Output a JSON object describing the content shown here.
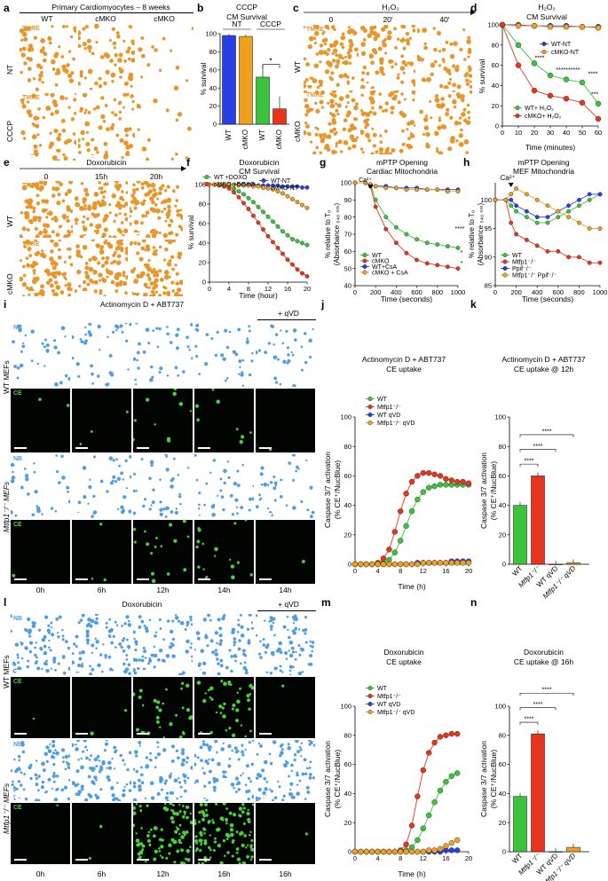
{
  "panels": {
    "a": {
      "letter": "a",
      "header": "Primary Cardiomyocytes – 8 weeks",
      "cols": [
        "WT",
        "cMKO",
        "cMKO"
      ],
      "rows": [
        "NT",
        "CCCP"
      ],
      "tag": "TMRE"
    },
    "b": {
      "letter": "b",
      "title1": "CCCP",
      "title2": "CM Survival",
      "groups": [
        "NT",
        "CCCP"
      ],
      "ylabel": "% survival",
      "sig": "*"
    },
    "c": {
      "letter": "c",
      "header": "H₂O₂",
      "cols": [
        "0",
        "20'",
        "40'"
      ],
      "rows": [
        "WT",
        "cMKO"
      ],
      "tag": "TMRE"
    },
    "d": {
      "letter": "d",
      "title1": "H₂O₂",
      "title2": "CM Survival",
      "ylabel": "% survival",
      "xlabel": "Time (minutes)",
      "legend": [
        "WT-NT",
        "cMKO-NT",
        "WT+ H₂O₂",
        "cMKO+ H₂O₂"
      ],
      "sig": [
        "****",
        "**********",
        "****",
        "***"
      ]
    },
    "e": {
      "letter": "e",
      "header": "Doxorubicin",
      "cols": [
        "0",
        "15h",
        "20h"
      ],
      "rows": [
        "WT",
        "cMKO"
      ],
      "tag": "TMRE"
    },
    "f": {
      "letter": "f",
      "title1": "Doxorubicin",
      "title2": "CM Survival",
      "ylabel": "% survival",
      "xlabel": "Time (hour)",
      "legend": [
        "WT +DOXO",
        "cMKO +DOXO",
        "WT-NT",
        "cMKO-NT"
      ]
    },
    "g": {
      "letter": "g",
      "title1": "mPTP Opening",
      "title2": "Cardiac Mitochondria",
      "ylabel1": "% relative to T₀",
      "ylabel2": "(Absorbance ₅₄₀ ₙₘ)",
      "xlabel": "Time (seconds)",
      "ca": "Ca²⁺",
      "legend": [
        "WT",
        "cMKO",
        "WT+CsA",
        "cMKO + CsA"
      ],
      "sig": [
        "****",
        "*",
        "*"
      ]
    },
    "h": {
      "letter": "h",
      "title1": "mPTP Opening",
      "title2": "MEF Mitochondria",
      "ylabel1": "% relative to T₀",
      "ylabel2": "(Absorbance ₅₄₀ ₙₘ)",
      "xlabel": "Time (seconds)",
      "ca": "Ca²⁺",
      "legend": [
        "WT",
        "Mtfp1⁻/⁻",
        "Ppif⁻/⁻",
        "Mtfp1⁻/⁻ Ppif⁻/⁻"
      ]
    },
    "i": {
      "letter": "i",
      "header": "Actinomycin D + ABT737",
      "qvd": "+ qVD",
      "times": [
        "0h",
        "6h",
        "12h",
        "14h",
        "14h"
      ],
      "groups": [
        "WT MEFs",
        "Mtfp1⁻/⁻ MEFs"
      ],
      "tags": [
        "NB",
        "CE"
      ]
    },
    "j": {
      "letter": "j",
      "title1": "Actinomycin D + ABT737",
      "title2": "CE uptake",
      "ylabel1": "Caspase 3/7 activation",
      "ylabel2": "(% CE⁺/NucBlue)",
      "xlabel": "Time (h)",
      "legend": [
        "WT",
        "Mtfp1⁻/⁻",
        "WT qVD",
        "Mtfp1⁻/⁻ qVD"
      ]
    },
    "k": {
      "letter": "k",
      "title1": "Actinomycin D + ABT737",
      "title2": "CE uptake @ 12h",
      "ylabel1": "Caspase 3/7 activation",
      "ylabel2": "(% CE⁺/NucBlue)",
      "sig": [
        "****",
        "****",
        "****"
      ]
    },
    "l": {
      "letter": "l",
      "header": "Doxorubicin",
      "qvd": "+ qVD",
      "times": [
        "0h",
        "6h",
        "12h",
        "16h",
        "16h"
      ],
      "groups": [
        "WT MEFs",
        "Mtfp1⁻/⁻ MEFs"
      ],
      "tags": [
        "NB",
        "CE"
      ]
    },
    "m": {
      "letter": "m",
      "title1": "Doxorubicin",
      "title2": "CE uptake",
      "ylabel1": "Caspase 3/7 activation",
      "ylabel2": "(% CE⁺/NucBlue)",
      "xlabel": "Time (h)",
      "legend": [
        "WT",
        "Mtfp1⁻/⁻",
        "WT qVD",
        "Mtfp1⁻/⁻ qVD"
      ]
    },
    "n": {
      "letter": "n",
      "title1": "Doxorubicin",
      "title2": "CE uptake @ 16h",
      "ylabel1": "Caspase 3/7 activation",
      "ylabel2": "(% CE⁺/NucBlue)",
      "sig": [
        "****",
        "****",
        "****"
      ]
    }
  },
  "colors": {
    "green": "#3cc33c",
    "red": "#e8341c",
    "blue": "#2740e6",
    "orange": "#f0a020",
    "tmre": "#e8962a",
    "nb": "#4f9de0",
    "ce": "#4bd23a"
  },
  "chart_data": [
    {
      "id": "b",
      "type": "bar",
      "categories": [
        "WT",
        "cMKO",
        "WT",
        "cMKO"
      ],
      "values": [
        98,
        97,
        52,
        17
      ],
      "ylim": [
        0,
        100
      ],
      "yticks": [
        0,
        20,
        40,
        60,
        80,
        100
      ],
      "colors": [
        "blue",
        "orange",
        "green",
        "red"
      ]
    },
    {
      "id": "d",
      "type": "line",
      "x": [
        0,
        10,
        20,
        30,
        40,
        50,
        60
      ],
      "xlim": [
        0,
        60
      ],
      "ylim": [
        0,
        100
      ],
      "yticks": [
        0,
        20,
        40,
        60,
        80,
        100
      ],
      "xticks": [
        0,
        10,
        20,
        30,
        40,
        50,
        60
      ],
      "series": [
        {
          "name": "WT-NT",
          "color": "blue",
          "values": [
            100,
            100,
            99,
            99,
            99,
            98,
            98
          ]
        },
        {
          "name": "cMKO-NT",
          "color": "orange",
          "values": [
            100,
            99,
            99,
            98,
            98,
            98,
            97
          ]
        },
        {
          "name": "WT+ H₂O₂",
          "color": "green",
          "values": [
            100,
            80,
            62,
            50,
            46,
            43,
            22
          ]
        },
        {
          "name": "cMKO+ H₂O₂",
          "color": "red",
          "values": [
            100,
            60,
            35,
            30,
            27,
            23,
            7
          ]
        }
      ]
    },
    {
      "id": "f",
      "type": "line",
      "x": [
        0,
        1,
        2,
        3,
        4,
        5,
        6,
        7,
        8,
        9,
        10,
        11,
        12,
        13,
        14,
        15,
        16,
        17,
        18,
        19,
        20
      ],
      "xlim": [
        0,
        20
      ],
      "ylim": [
        0,
        100
      ],
      "yticks": [
        0,
        20,
        40,
        60,
        80,
        100
      ],
      "xticks": [
        0,
        4,
        8,
        12,
        16,
        20
      ],
      "series": [
        {
          "name": "WT +DOXO",
          "color": "green",
          "values": [
            100,
            100,
            100,
            99,
            98,
            96,
            93,
            90,
            86,
            82,
            77,
            72,
            67,
            62,
            57,
            52,
            48,
            44,
            42,
            40,
            38
          ]
        },
        {
          "name": "cMKO +DOXO",
          "color": "red",
          "values": [
            100,
            100,
            99,
            98,
            96,
            92,
            87,
            81,
            75,
            68,
            61,
            54,
            47,
            41,
            35,
            29,
            23,
            18,
            13,
            9,
            6
          ]
        },
        {
          "name": "WT-NT",
          "color": "blue",
          "values": [
            100,
            100,
            100,
            100,
            100,
            100,
            100,
            100,
            100,
            100,
            99,
            99,
            99,
            99,
            99,
            98,
            98,
            98,
            98,
            97,
            97
          ]
        },
        {
          "name": "cMKO-NT",
          "color": "orange",
          "values": [
            100,
            100,
            100,
            100,
            100,
            100,
            99,
            99,
            99,
            98,
            98,
            97,
            96,
            95,
            93,
            91,
            88,
            85,
            82,
            79,
            76
          ]
        }
      ]
    },
    {
      "id": "g",
      "type": "line",
      "x": [
        0,
        100,
        150,
        200,
        300,
        400,
        500,
        600,
        700,
        800,
        900,
        1000
      ],
      "xlim": [
        0,
        1000
      ],
      "ylim": [
        40,
        100
      ],
      "yticks": [
        40,
        50,
        60,
        70,
        80,
        90,
        100
      ],
      "xticks": [
        0,
        200,
        400,
        600,
        800,
        1000
      ],
      "series": [
        {
          "name": "WT",
          "color": "green",
          "values": [
            100,
            100,
            99,
            90,
            80,
            74,
            70,
            67,
            65,
            64,
            63,
            62
          ]
        },
        {
          "name": "cMKO",
          "color": "red",
          "values": [
            100,
            100,
            98,
            86,
            73,
            65,
            59,
            55,
            53,
            52,
            51,
            50
          ]
        },
        {
          "name": "WT+CsA",
          "color": "blue",
          "values": [
            100,
            100,
            99,
            98,
            98,
            97,
            97,
            97,
            96,
            96,
            96,
            96
          ]
        },
        {
          "name": "cMKO + CsA",
          "color": "orange",
          "values": [
            100,
            100,
            99,
            98,
            97,
            97,
            96,
            96,
            96,
            96,
            95,
            95
          ]
        }
      ]
    },
    {
      "id": "h",
      "type": "line",
      "x": [
        0,
        100,
        150,
        200,
        300,
        400,
        500,
        600,
        700,
        800,
        900,
        1000
      ],
      "xlim": [
        0,
        1000
      ],
      "ylim": [
        85,
        103
      ],
      "yticks": [
        85,
        90,
        95,
        100
      ],
      "xticks": [
        0,
        200,
        400,
        600,
        800,
        1000
      ],
      "series": [
        {
          "name": "WT",
          "color": "green",
          "values": [
            100,
            100,
            99,
            98,
            97,
            96,
            96,
            97,
            98,
            99,
            100,
            101
          ]
        },
        {
          "name": "Mtfp1⁻/⁻",
          "color": "red",
          "values": [
            100,
            100,
            96,
            94,
            93,
            92,
            91,
            91,
            90,
            90,
            89,
            89
          ]
        },
        {
          "name": "Ppif⁻/⁻",
          "color": "blue",
          "values": [
            100,
            100,
            100,
            99,
            98,
            97,
            97,
            98,
            99,
            100,
            101,
            101
          ]
        },
        {
          "name": "Mtfp1⁻/⁻ Ppif⁻/⁻",
          "color": "orange",
          "values": [
            100,
            100,
            101,
            102,
            101,
            100,
            99,
            98,
            97,
            96,
            95,
            95
          ]
        }
      ]
    },
    {
      "id": "j",
      "type": "line",
      "x": [
        0,
        1,
        2,
        3,
        4,
        5,
        6,
        7,
        8,
        9,
        10,
        11,
        12,
        13,
        14,
        15,
        16,
        17,
        18,
        19,
        20
      ],
      "xlim": [
        0,
        20
      ],
      "ylim": [
        0,
        100
      ],
      "yticks": [
        0,
        20,
        40,
        60,
        80,
        100
      ],
      "xticks": [
        0,
        4,
        8,
        12,
        16,
        20
      ],
      "series": [
        {
          "name": "WT",
          "color": "green",
          "values": [
            0,
            0,
            0,
            0,
            0,
            1,
            3,
            8,
            16,
            26,
            36,
            44,
            49,
            52,
            53,
            54,
            54,
            54,
            54,
            54,
            54
          ]
        },
        {
          "name": "Mtfp1⁻/⁻",
          "color": "red",
          "values": [
            0,
            0,
            0,
            0,
            1,
            4,
            10,
            22,
            36,
            48,
            56,
            60,
            62,
            62,
            61,
            60,
            58,
            57,
            56,
            56,
            55
          ]
        },
        {
          "name": "WT qVD",
          "color": "blue",
          "values": [
            0,
            0,
            0,
            0,
            0,
            0,
            0,
            0,
            0,
            0,
            0,
            1,
            1,
            1,
            1,
            1,
            1,
            2,
            2,
            2,
            2
          ]
        },
        {
          "name": "Mtfp1⁻/⁻ qVD",
          "color": "orange",
          "values": [
            0,
            0,
            0,
            0,
            0,
            0,
            0,
            0,
            0,
            0,
            0,
            0,
            1,
            1,
            1,
            1,
            1,
            1,
            1,
            1,
            1
          ]
        }
      ]
    },
    {
      "id": "k",
      "type": "bar",
      "categories": [
        "WT",
        "Mtfp1⁻/⁻",
        "WT qVD",
        "Mtfp1⁻/⁻ qVD"
      ],
      "values": [
        40,
        60,
        0,
        1
      ],
      "ylim": [
        0,
        100
      ],
      "yticks": [
        0,
        20,
        40,
        60,
        80,
        100
      ],
      "colors": [
        "green",
        "red",
        "blue",
        "orange"
      ]
    },
    {
      "id": "m",
      "type": "line",
      "x": [
        0,
        1,
        2,
        3,
        4,
        5,
        6,
        7,
        8,
        9,
        10,
        11,
        12,
        13,
        14,
        15,
        16,
        17,
        18
      ],
      "xlim": [
        0,
        20
      ],
      "ylim": [
        0,
        100
      ],
      "yticks": [
        0,
        20,
        40,
        60,
        80,
        100
      ],
      "xticks": [
        0,
        4,
        8,
        12,
        16,
        20
      ],
      "series": [
        {
          "name": "WT",
          "color": "green",
          "values": [
            0,
            0,
            0,
            0,
            0,
            0,
            0,
            0,
            0,
            1,
            3,
            8,
            16,
            25,
            34,
            42,
            48,
            52,
            54
          ]
        },
        {
          "name": "Mtfp1⁻/⁻",
          "color": "red",
          "values": [
            0,
            0,
            0,
            0,
            0,
            0,
            0,
            0,
            1,
            5,
            18,
            38,
            56,
            68,
            75,
            79,
            80,
            81,
            81
          ]
        },
        {
          "name": "WT qVD",
          "color": "blue",
          "values": [
            0,
            0,
            0,
            0,
            0,
            0,
            0,
            0,
            0,
            0,
            0,
            0,
            0,
            0,
            0,
            0,
            1,
            1,
            1
          ]
        },
        {
          "name": "Mtfp1⁻/⁻ qVD",
          "color": "orange",
          "values": [
            0,
            0,
            0,
            0,
            0,
            0,
            0,
            0,
            0,
            0,
            0,
            0,
            0,
            1,
            1,
            2,
            4,
            6,
            8
          ]
        }
      ]
    },
    {
      "id": "n",
      "type": "bar",
      "categories": [
        "WT",
        "Mtfp1⁻/⁻",
        "WT qVD",
        "Mtfp1⁻/⁻ qVD"
      ],
      "values": [
        38,
        81,
        0,
        3
      ],
      "ylim": [
        0,
        100
      ],
      "yticks": [
        0,
        20,
        40,
        60,
        80,
        100
      ],
      "colors": [
        "green",
        "red",
        "blue",
        "orange"
      ]
    }
  ]
}
